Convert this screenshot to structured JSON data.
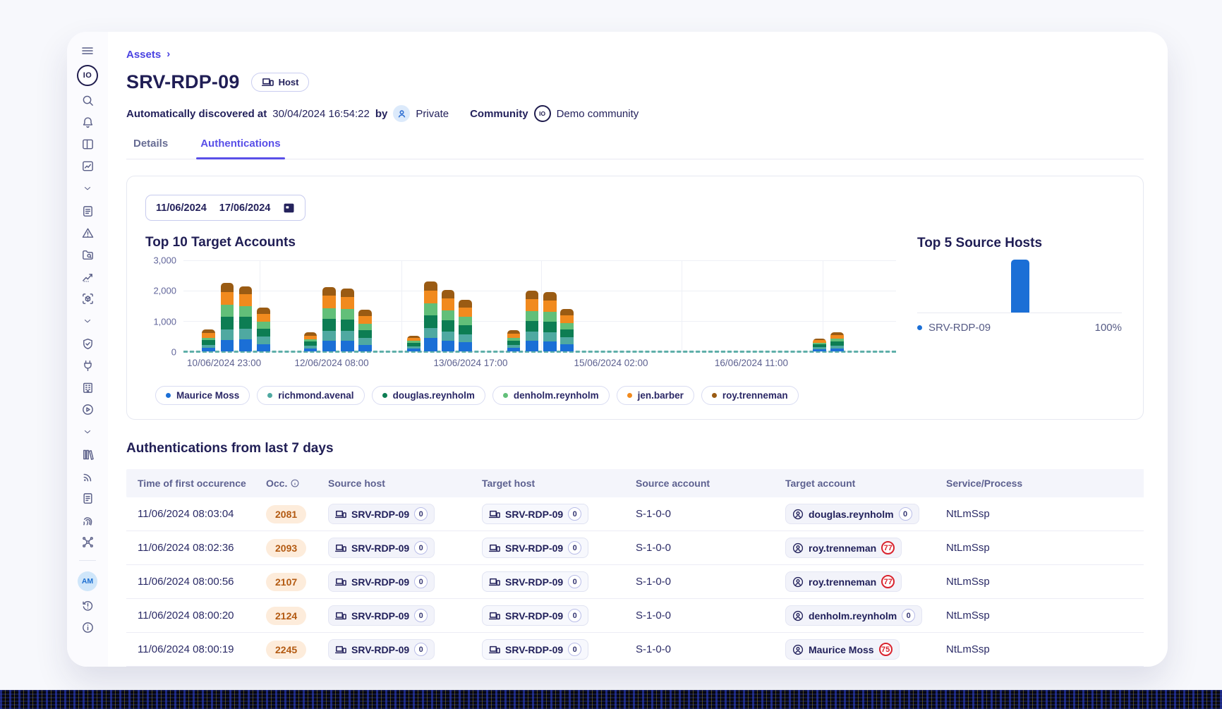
{
  "breadcrumb": {
    "root": "Assets"
  },
  "header": {
    "title": "SRV-RDP-09",
    "type_badge": "Host",
    "discovered_label": "Automatically discovered at",
    "discovered_value": "30/04/2024 16:54:22",
    "by_label": "by",
    "visibility": "Private",
    "community_label": "Community",
    "community_logo": "IO",
    "community_value": "Demo community"
  },
  "sidebar": {
    "logo_text": "IO",
    "avatar_text": "AM",
    "icons": [
      "menu",
      "logo",
      "search",
      "bell",
      "layout",
      "chart-box",
      "chevron-down",
      "report",
      "alert-triangle",
      "folder-search",
      "trend",
      "cube-scan",
      "chevron-down",
      "shield-check",
      "plug",
      "building",
      "play-circle",
      "chevron-down",
      "library",
      "rss",
      "document",
      "fingerprint",
      "network",
      "divider",
      "avatar",
      "history-alert",
      "info"
    ]
  },
  "tabs": [
    {
      "label": "Details",
      "active": false
    },
    {
      "label": "Authentications",
      "active": true
    }
  ],
  "filters": {
    "date_from": "11/06/2024",
    "date_to": "17/06/2024"
  },
  "chart_data": [
    {
      "type": "bar",
      "stacked": true,
      "title": "Top 10 Target Accounts",
      "ylim": [
        0,
        3000
      ],
      "ytick_labels": [
        "3,000",
        "2,000",
        "1,000",
        "0"
      ],
      "grid": true,
      "vgrid_pct": [
        10.7,
        30.6,
        50.2,
        69.9,
        89.7
      ],
      "xticks": [
        {
          "label": "10/06/2024 23:00",
          "pct": 0.5
        },
        {
          "label": "12/06/2024 08:00",
          "pct": 20.8
        },
        {
          "label": "13/06/2024 17:00",
          "pct": 40.3
        },
        {
          "label": "15/06/2024 02:00",
          "pct": 60.0
        },
        {
          "label": "16/06/2024 11:00",
          "pct": 79.7
        }
      ],
      "legend_position": "bottom",
      "series": [
        {
          "name": "Maurice Moss",
          "color": "#1b6fd6"
        },
        {
          "name": "richmond.avenal",
          "color": "#4fa9a1"
        },
        {
          "name": "douglas.reynholm",
          "color": "#0d7d53"
        },
        {
          "name": "denholm.reynholm",
          "color": "#62bf79"
        },
        {
          "name": "jen.barber",
          "color": "#f18a1e"
        },
        {
          "name": "roy.trenneman",
          "color": "#9a5b13"
        }
      ],
      "baseline_dash_color": "#4fa9a1",
      "bars": [
        {
          "left_pct": 2.6,
          "values": [
            110,
            95,
            160,
            85,
            150,
            110
          ]
        },
        {
          "left_pct": 5.2,
          "values": [
            380,
            330,
            420,
            400,
            430,
            290
          ]
        },
        {
          "left_pct": 7.8,
          "values": [
            390,
            360,
            380,
            370,
            390,
            260
          ]
        },
        {
          "left_pct": 10.3,
          "values": [
            230,
            250,
            260,
            230,
            270,
            210
          ]
        },
        {
          "left_pct": 16.9,
          "values": [
            100,
            80,
            140,
            80,
            120,
            100
          ]
        },
        {
          "left_pct": 19.5,
          "values": [
            340,
            330,
            390,
            360,
            410,
            290
          ]
        },
        {
          "left_pct": 22.1,
          "values": [
            350,
            320,
            370,
            360,
            400,
            280
          ]
        },
        {
          "left_pct": 24.6,
          "values": [
            210,
            230,
            250,
            220,
            250,
            210
          ]
        },
        {
          "left_pct": 31.4,
          "values": [
            90,
            70,
            110,
            70,
            100,
            80
          ]
        },
        {
          "left_pct": 33.8,
          "values": [
            430,
            340,
            420,
            380,
            440,
            290
          ]
        },
        {
          "left_pct": 36.2,
          "values": [
            350,
            310,
            360,
            340,
            390,
            280
          ]
        },
        {
          "left_pct": 38.6,
          "values": [
            290,
            270,
            300,
            270,
            320,
            250
          ]
        },
        {
          "left_pct": 45.4,
          "values": [
            110,
            90,
            160,
            90,
            140,
            110
          ]
        },
        {
          "left_pct": 48.0,
          "values": [
            340,
            300,
            360,
            330,
            390,
            280
          ]
        },
        {
          "left_pct": 50.5,
          "values": [
            330,
            300,
            350,
            320,
            380,
            270
          ]
        },
        {
          "left_pct": 52.9,
          "values": [
            220,
            240,
            250,
            230,
            250,
            210
          ]
        },
        {
          "left_pct": 88.3,
          "values": [
            70,
            60,
            100,
            60,
            80,
            60
          ]
        },
        {
          "left_pct": 90.8,
          "values": [
            100,
            90,
            130,
            90,
            120,
            90
          ]
        }
      ]
    },
    {
      "type": "bar",
      "title": "Top 5 Source Hosts",
      "items": [
        {
          "label": "SRV-RDP-09",
          "value": "100%",
          "pct": 100,
          "color": "#1b6fd6"
        }
      ]
    }
  ],
  "table": {
    "section_title": "Authentications from last 7 days",
    "columns": [
      {
        "label": "Time of first occurence",
        "info": false
      },
      {
        "label": "Occ.",
        "info": true
      },
      {
        "label": "Source host",
        "info": false
      },
      {
        "label": "Target host",
        "info": false
      },
      {
        "label": "Source account",
        "info": false
      },
      {
        "label": "Target account",
        "info": false
      },
      {
        "label": "Service/Process",
        "info": false
      }
    ],
    "rows": [
      {
        "time": "11/06/2024 08:03:04",
        "occ": "2081",
        "source_host": {
          "name": "SRV-RDP-09",
          "count": "0"
        },
        "target_host": {
          "name": "SRV-RDP-09",
          "count": "0"
        },
        "source_account": "S-1-0-0",
        "target_account": {
          "name": "douglas.reynholm",
          "count": "0",
          "alert": false
        },
        "service": "NtLmSsp"
      },
      {
        "time": "11/06/2024 08:02:36",
        "occ": "2093",
        "source_host": {
          "name": "SRV-RDP-09",
          "count": "0"
        },
        "target_host": {
          "name": "SRV-RDP-09",
          "count": "0"
        },
        "source_account": "S-1-0-0",
        "target_account": {
          "name": "roy.trenneman",
          "count": "77",
          "alert": true
        },
        "service": "NtLmSsp"
      },
      {
        "time": "11/06/2024 08:00:56",
        "occ": "2107",
        "source_host": {
          "name": "SRV-RDP-09",
          "count": "0"
        },
        "target_host": {
          "name": "SRV-RDP-09",
          "count": "0"
        },
        "source_account": "S-1-0-0",
        "target_account": {
          "name": "roy.trenneman",
          "count": "77",
          "alert": true
        },
        "service": "NtLmSsp"
      },
      {
        "time": "11/06/2024 08:00:20",
        "occ": "2124",
        "source_host": {
          "name": "SRV-RDP-09",
          "count": "0"
        },
        "target_host": {
          "name": "SRV-RDP-09",
          "count": "0"
        },
        "source_account": "S-1-0-0",
        "target_account": {
          "name": "denholm.reynholm",
          "count": "0",
          "alert": false
        },
        "service": "NtLmSsp"
      },
      {
        "time": "11/06/2024 08:00:19",
        "occ": "2245",
        "source_host": {
          "name": "SRV-RDP-09",
          "count": "0"
        },
        "target_host": {
          "name": "SRV-RDP-09",
          "count": "0"
        },
        "source_account": "S-1-0-0",
        "target_account": {
          "name": "Maurice Moss",
          "count": "75",
          "alert": true
        },
        "service": "NtLmSsp"
      }
    ]
  },
  "colors": {
    "accent_indigo": "#4a43e2",
    "tab_active": "#594fe8",
    "navy_text": "#201e55",
    "occ_badge_bg": "#fdecdb",
    "occ_badge_text": "#b35a12",
    "alert_red": "#d9232e",
    "baseline_teal": "#4fa9a1",
    "source_host_bar_blue": "#1b6fd6"
  }
}
